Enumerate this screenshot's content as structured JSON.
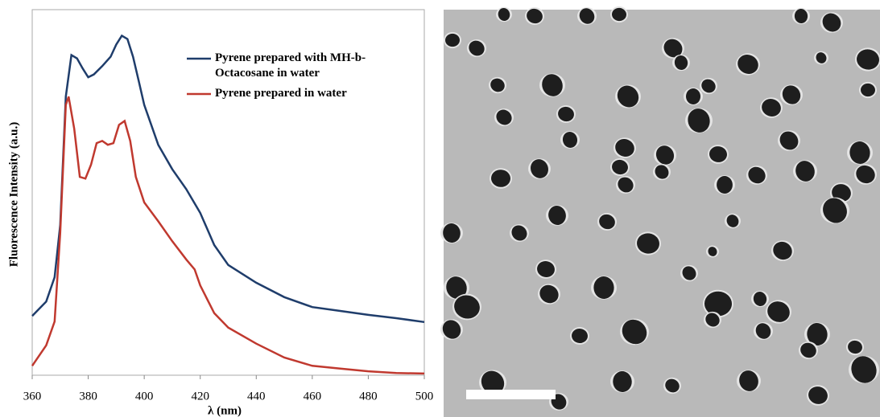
{
  "chart_data": {
    "type": "line",
    "x_label": "λ (nm)",
    "y_label": "Fluorescence Intensity (a.u.)",
    "xlim": [
      360,
      500
    ],
    "xticks": [
      360,
      380,
      400,
      420,
      440,
      460,
      480,
      500
    ],
    "ylim": [
      0,
      6.6
    ],
    "series": [
      {
        "name": "Pyrene prepared with MH-b-Octacosane in water",
        "color": "#1f3d6b",
        "x": [
          360,
          365,
          368,
          370,
          372,
          374,
          376,
          378,
          380,
          382,
          385,
          388,
          390,
          392,
          394,
          396,
          398,
          400,
          405,
          410,
          415,
          420,
          425,
          430,
          440,
          450,
          460,
          470,
          480,
          490,
          500
        ],
        "values": [
          1.07,
          1.33,
          1.77,
          2.71,
          5.03,
          5.78,
          5.72,
          5.54,
          5.38,
          5.43,
          5.58,
          5.75,
          5.97,
          6.13,
          6.07,
          5.75,
          5.32,
          4.88,
          4.16,
          3.72,
          3.36,
          2.93,
          2.35,
          1.99,
          1.67,
          1.41,
          1.23,
          1.16,
          1.09,
          1.03,
          0.96
        ]
      },
      {
        "name": "Pyrene prepared in water",
        "color": "#c0392f",
        "x": [
          360,
          365,
          368,
          370,
          372,
          373,
          375,
          377,
          379,
          381,
          383,
          385,
          387,
          389,
          391,
          393,
          395,
          397,
          400,
          405,
          410,
          415,
          418,
          420,
          425,
          430,
          440,
          450,
          460,
          470,
          480,
          490,
          500
        ],
        "values": [
          0.17,
          0.54,
          0.97,
          2.57,
          4.88,
          5.03,
          4.45,
          3.58,
          3.55,
          3.8,
          4.19,
          4.23,
          4.16,
          4.19,
          4.52,
          4.59,
          4.23,
          3.58,
          3.12,
          2.78,
          2.42,
          2.09,
          1.91,
          1.62,
          1.12,
          0.86,
          0.57,
          0.32,
          0.17,
          0.12,
          0.07,
          0.04,
          0.03
        ]
      }
    ]
  }
}
